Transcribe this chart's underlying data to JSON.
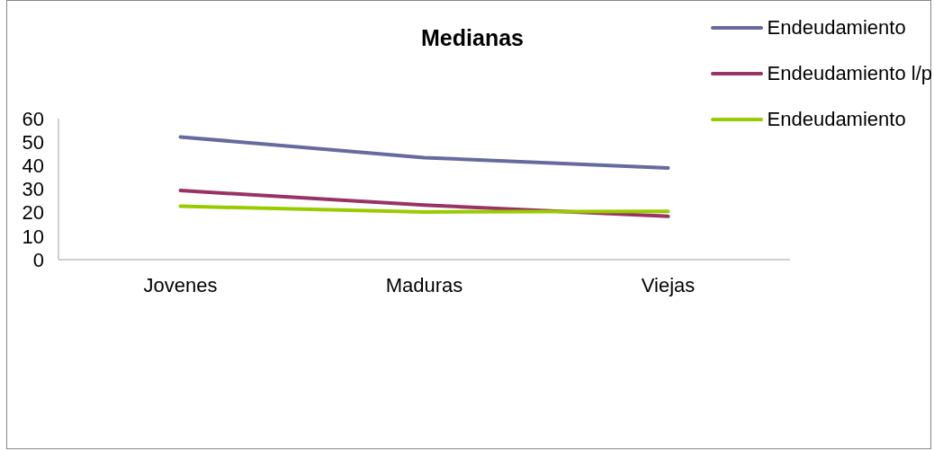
{
  "chart_data": {
    "type": "line",
    "title": "Medianas",
    "categories": [
      "Jovenes",
      "Maduras",
      "Viejas"
    ],
    "series": [
      {
        "name": "Endeudamiento",
        "color": "#676a9e",
        "values": [
          52.2,
          43.4,
          39.0
        ]
      },
      {
        "name": "Endeudamiento l/p",
        "color": "#993366",
        "values": [
          29.4,
          23.2,
          18.4
        ]
      },
      {
        "name": "Endeudamiento",
        "color": "#99cc00",
        "values": [
          22.7,
          20.3,
          20.5
        ]
      }
    ],
    "ylim": [
      0,
      60
    ],
    "yticks": [
      0,
      10,
      20,
      30,
      40,
      50,
      60
    ],
    "grid": false,
    "legend": "top right",
    "marker": "none",
    "line_style": "solid"
  }
}
